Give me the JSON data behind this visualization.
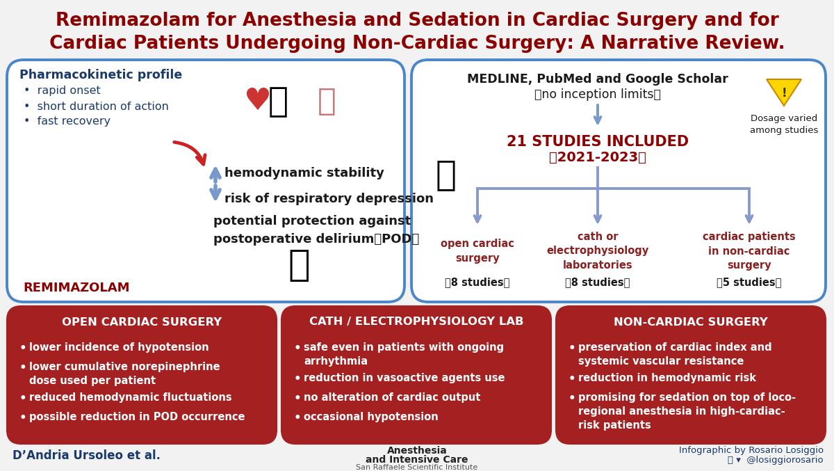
{
  "title_line1": "Remimazolam for Anesthesia and Sedation in Cardiac Surgery and for",
  "title_line2": "Cardiac Patients Undergoing Non-Cardiac Surgery: A Narrative Review.",
  "title_color": "#8B0000",
  "bg_color": "#F2F2F2",
  "panel_bg": "#FFFFFF",
  "panel_border": "#4A86C8",
  "pk_title": "Pharmacokinetic profile",
  "pk_bullets": [
    "rapid onset",
    "short duration of action",
    "fast recovery"
  ],
  "pk_color": "#1A3A6B",
  "remi_label": "REMIMAZOLAM",
  "arrow_up_text": "hemodynamic stability",
  "arrow_down_text": "risk of respiratory depression",
  "pod_text": "potential protection against\npostoperative delirium（POD）",
  "arrow_color": "#8899CC",
  "medline_line1": "MEDLINE, PubMed and Google Scholar",
  "medline_line2": "（no inception limits）",
  "studies_line1": "21 STUDIES INCLUDED",
  "studies_line2": "（2021-2023）",
  "studies_color": "#8B0000",
  "branch_color": "#8B2020",
  "branch1_title": "open cardiac\nsurgery",
  "branch2_title": "cath or\nelectrophysiology\nlaboratories",
  "branch3_title": "cardiac patients\nin non-cardiac\nsurgery",
  "branch1_studies": "（8 studies）",
  "branch2_studies": "（8 studies）",
  "branch3_studies": "（5 studies）",
  "dosage_text": "Dosage varied\namong studies",
  "box1_title": "OPEN CARDIAC SURGERY",
  "box1_bullets": [
    "lower incidence of hypotension",
    "lower cumulative norepinephrine\ndose used per patient",
    "reduced hemodynamic fluctuations",
    "possible reduction in POD occurrence"
  ],
  "box2_title": "CATH / ELECTROPHYSIOLOGY LAB",
  "box2_bullets": [
    "safe even in patients with ongoing\narrhythmia",
    "reduction in vasoactive agents use",
    "no alteration of cardiac output",
    "occasional hypotension"
  ],
  "box3_title": "NON-CARDIAC SURGERY",
  "box3_bullets": [
    "preservation of cardiac index and\nsystemic vascular resistance",
    "reduction in hemodynamic risk",
    "promising for sedation on top of loco-\nregional anesthesia in high-cardiac-\nrisk patients"
  ],
  "red_box_color": "#A52020",
  "footer_left": "D’Andria Ursoleo et al.",
  "footer_left_color": "#1A3A6B",
  "footer_right1": "Infographic by Rosario Losiggio",
  "footer_right2": "ⓞ ▾  @losiggiorosario",
  "footer_right_color": "#1A3A6B",
  "footer_center1": "Anesthesia",
  "footer_center2": "and Intensive Care",
  "footer_center3": "San Raffaele Scientific Institute"
}
